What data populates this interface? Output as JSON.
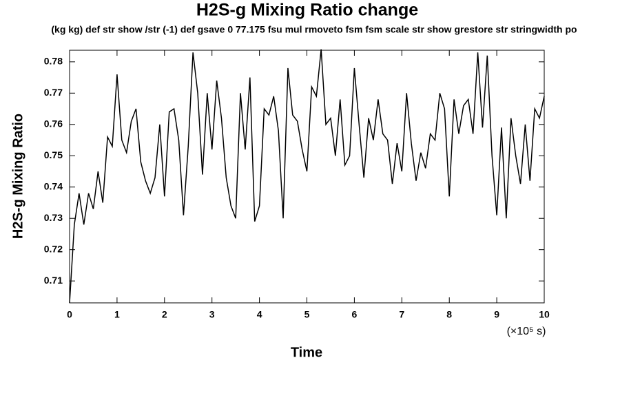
{
  "chart_data": {
    "type": "line",
    "title": "H2S-g Mixing Ratio change",
    "subtitle": "(kg kg) def str show /str (-1) def gsave 0 77.175 fsu mul rmoveto fsm fsm scale str show grestore str stringwidth po",
    "x_label": "Time",
    "x_unit": "(×10⁵ s)",
    "y_label": "H2S-g Mixing Ratio",
    "xlim": [
      0,
      10
    ],
    "xticks": [
      0,
      1,
      2,
      3,
      4,
      5,
      6,
      7,
      8,
      9,
      10
    ],
    "ylim": [
      0.703,
      0.7837
    ],
    "yticks": [
      0.71,
      0.72,
      0.73,
      0.74,
      0.75,
      0.76,
      0.77,
      0.78
    ],
    "x": [
      0,
      0.1,
      0.2,
      0.3,
      0.4,
      0.5,
      0.6,
      0.7,
      0.8,
      0.9,
      1,
      1.1,
      1.2,
      1.3,
      1.4,
      1.5,
      1.6,
      1.7,
      1.8,
      1.9,
      2,
      2.1,
      2.2,
      2.3,
      2.4,
      2.5,
      2.6,
      2.7,
      2.8,
      2.9,
      3,
      3.1,
      3.2,
      3.3,
      3.4,
      3.5,
      3.6,
      3.7,
      3.8,
      3.9,
      4,
      4.1,
      4.2,
      4.3,
      4.4,
      4.5,
      4.6,
      4.7,
      4.8,
      4.9,
      5,
      5.1,
      5.2,
      5.3,
      5.4,
      5.5,
      5.6,
      5.7,
      5.8,
      5.9,
      6,
      6.1,
      6.2,
      6.3,
      6.4,
      6.5,
      6.6,
      6.7,
      6.8,
      6.9,
      7,
      7.1,
      7.2,
      7.3,
      7.4,
      7.5,
      7.6,
      7.7,
      7.8,
      7.9,
      8,
      8.1,
      8.2,
      8.3,
      8.4,
      8.5,
      8.6,
      8.7,
      8.8,
      8.9,
      9,
      9.1,
      9.2,
      9.3,
      9.4,
      9.5,
      9.6,
      9.7,
      9.8,
      9.9,
      10
    ],
    "series": [
      {
        "color": "#000000",
        "values": [
          0.703,
          0.728,
          0.738,
          0.728,
          0.738,
          0.733,
          0.745,
          0.735,
          0.756,
          0.753,
          0.776,
          0.755,
          0.751,
          0.761,
          0.765,
          0.748,
          0.742,
          0.738,
          0.743,
          0.76,
          0.737,
          0.764,
          0.765,
          0.755,
          0.731,
          0.753,
          0.783,
          0.77,
          0.744,
          0.77,
          0.752,
          0.774,
          0.762,
          0.743,
          0.734,
          0.73,
          0.77,
          0.752,
          0.775,
          0.729,
          0.734,
          0.765,
          0.763,
          0.769,
          0.758,
          0.73,
          0.778,
          0.763,
          0.761,
          0.752,
          0.745,
          0.772,
          0.769,
          0.784,
          0.76,
          0.762,
          0.75,
          0.768,
          0.747,
          0.75,
          0.778,
          0.76,
          0.743,
          0.762,
          0.755,
          0.768,
          0.757,
          0.755,
          0.741,
          0.754,
          0.745,
          0.77,
          0.754,
          0.742,
          0.751,
          0.746,
          0.757,
          0.755,
          0.77,
          0.765,
          0.737,
          0.768,
          0.757,
          0.766,
          0.768,
          0.757,
          0.783,
          0.759,
          0.782,
          0.75,
          0.731,
          0.759,
          0.73,
          0.762,
          0.75,
          0.741,
          0.76,
          0.742,
          0.765,
          0.762,
          0.769
        ]
      }
    ]
  }
}
